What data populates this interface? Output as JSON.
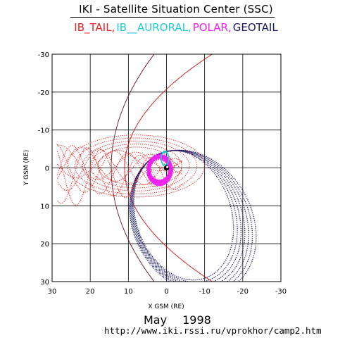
{
  "header": {
    "title": "IKI - Satellite Situation Center (SSC)",
    "legend": [
      {
        "label": "IB_TAIL,",
        "color": "#ee2222"
      },
      {
        "label": "IB__AURORAL,",
        "color": "#22c8d8"
      },
      {
        "label": "POLAR,",
        "color": "#ee22ee"
      },
      {
        "label": "GEOTAIL",
        "color": "#1a1a66"
      }
    ]
  },
  "chart_data": {
    "type": "line",
    "xlabel": "X GSM (RE)",
    "ylabel": "Y GSM (RE)",
    "xlim": [
      30,
      -30
    ],
    "ylim": [
      -30,
      30
    ],
    "x_ticks": [
      "30",
      "20",
      "10",
      "0",
      "-10",
      "-20",
      "-30"
    ],
    "y_ticks": [
      "-30",
      "-20",
      "-10",
      "0",
      "10",
      "20",
      "30"
    ],
    "grid": true,
    "series": [
      {
        "name": "IB_TAIL",
        "color": "#ee2222",
        "style": "dotted"
      },
      {
        "name": "IB__AURORAL",
        "color": "#22c8d8",
        "style": "dotted"
      },
      {
        "name": "POLAR",
        "color": "#ee22ee",
        "style": "dotted"
      },
      {
        "name": "GEOTAIL",
        "color": "#1a1a66",
        "style": "dotted"
      }
    ],
    "boundaries": [
      {
        "color": "#cc1111",
        "style": "solid"
      },
      {
        "color": "#661122",
        "style": "solid"
      }
    ]
  },
  "footer": {
    "month": "May",
    "year": "1998",
    "url": "http://www.iki.rssi.ru/vprokhor/camp2.htm"
  }
}
